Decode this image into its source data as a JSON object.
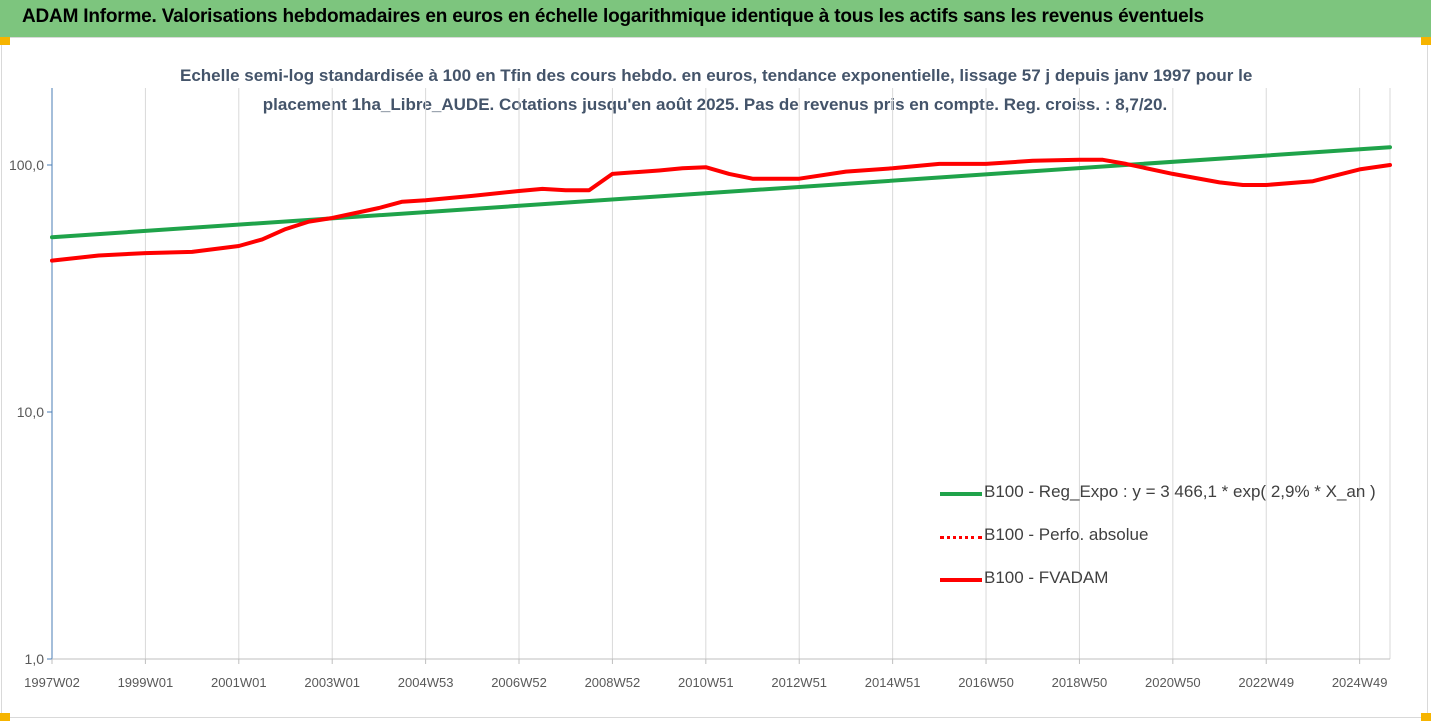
{
  "header": {
    "title": "ADAM Informe. Valorisations hebdomadaires en euros en échelle logarithmique identique à tous les actifs sans les revenus éventuels",
    "background": "#7dc57e"
  },
  "chart_data": {
    "type": "line",
    "title_line1": "Echelle semi-log standardisée à 100 en Tfin des cours hebdo. en euros, tendance exponentielle, lissage 57 j depuis janv 1997 pour le",
    "title_line2": "placement 1ha_Libre_AUDE. Cotations jusqu'en août 2025. Pas de revenus pris en compte. Reg. croiss. : 8,7/20.",
    "y_scale": "log",
    "ylim": [
      1,
      200
    ],
    "y_ticks": [
      1,
      10,
      100
    ],
    "y_tick_labels": [
      "1,0",
      "10,0",
      "100,0"
    ],
    "xlim": [
      1997.0,
      2025.65
    ],
    "x_ticks": [
      1997.0,
      1999.0,
      2001.0,
      2003.0,
      2005.0,
      2007.0,
      2009.0,
      2011.0,
      2013.0,
      2015.0,
      2017.0,
      2019.0,
      2021.0,
      2023.0,
      2025.0
    ],
    "x_tick_labels": [
      "1997W02",
      "1999W01",
      "2001W01",
      "2003W01",
      "2004W53",
      "2006W52",
      "2008W52",
      "2010W51",
      "2012W51",
      "2014W51",
      "2016W50",
      "2018W50",
      "2020W50",
      "2022W49",
      "2024W49"
    ],
    "grid": "vertical",
    "legend_position": "right",
    "series": [
      {
        "name": "B100 - Reg_Expo : y = 3 466,1 * exp( 2,9% *  X_an )",
        "color": "#1fa34a",
        "style": "solid",
        "x": [
          1997.0,
          2025.65
        ],
        "y": [
          51,
          118
        ]
      },
      {
        "name": "B100 - Perfo. absolue",
        "color": "#ff0000",
        "style": "dotted",
        "x": [],
        "y": []
      },
      {
        "name": "B100 - FVADAM",
        "color": "#ff0000",
        "style": "solid",
        "x": [
          1997.0,
          1998.0,
          1999.0,
          2000.0,
          2001.0,
          2001.5,
          2002.0,
          2002.5,
          2003.0,
          2004.0,
          2004.5,
          2005.0,
          2006.0,
          2007.0,
          2007.5,
          2008.0,
          2008.5,
          2009.0,
          2010.0,
          2010.5,
          2011.0,
          2011.5,
          2012.0,
          2013.0,
          2014.0,
          2015.0,
          2016.0,
          2017.0,
          2018.0,
          2019.0,
          2019.5,
          2020.0,
          2021.0,
          2022.0,
          2022.5,
          2023.0,
          2024.0,
          2025.0,
          2025.65
        ],
        "y": [
          41,
          43,
          44,
          44.5,
          47,
          50,
          55,
          59,
          61,
          67,
          71,
          72,
          75,
          78.5,
          80,
          79,
          79,
          92,
          95,
          97,
          98,
          92,
          88,
          88,
          94,
          97,
          101,
          101,
          104,
          105,
          105,
          101,
          92,
          85,
          83,
          83,
          86,
          96,
          100
        ]
      }
    ]
  }
}
